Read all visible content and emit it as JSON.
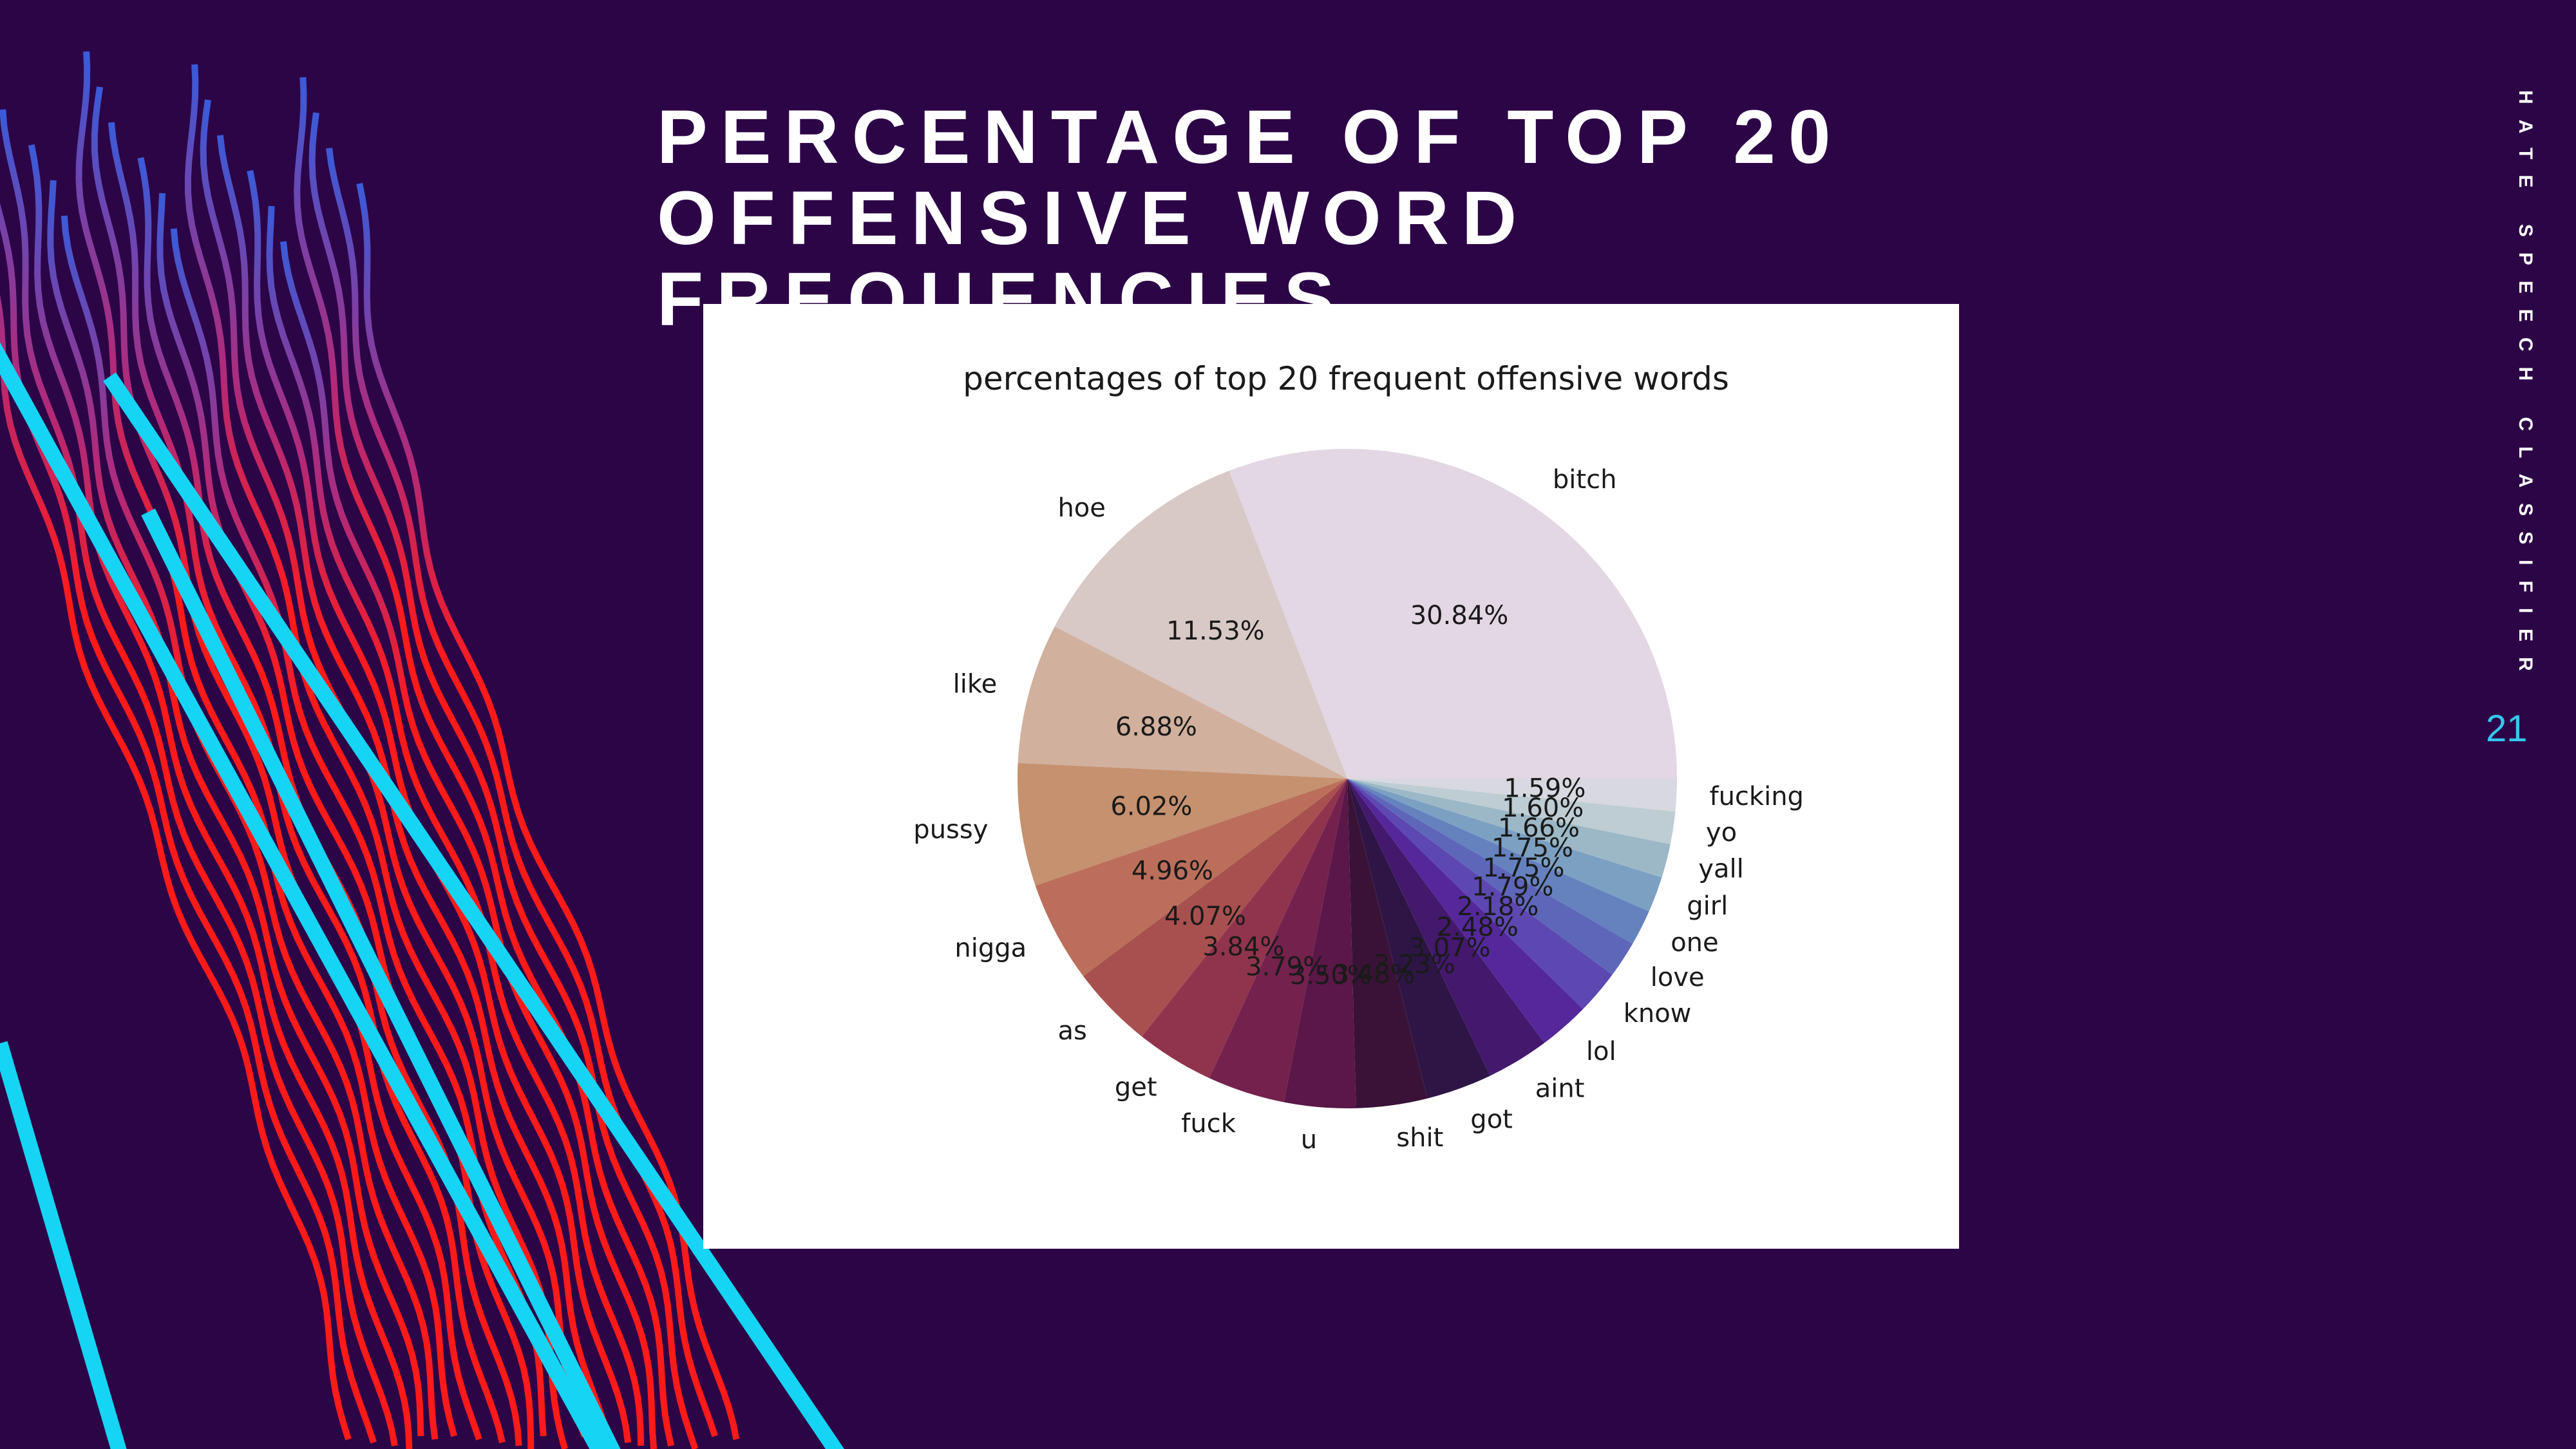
{
  "slide": {
    "title_line1": "PERCENTAGE OF TOP 20",
    "title_line2": "OFFENSIVE WORD FREQUENCIES",
    "side_label": "HATE SPEECH CLASSIFIER",
    "page_number": "21"
  },
  "colors": {
    "background": "#2c0547",
    "title": "#ffffff",
    "page_number": "#35c8ee",
    "deco_cyan": "#16d4f4",
    "deco_red": "#ff1a1a"
  },
  "chart_data": {
    "type": "pie",
    "title": "percentages of top 20 frequent offensive words",
    "start_angle_deg": 0,
    "direction": "counterclockwise",
    "slices": [
      {
        "label": "bitch",
        "value": 30.84,
        "value_label": "30.84%",
        "color": "#e2d7e3"
      },
      {
        "label": "hoe",
        "value": 11.53,
        "value_label": "11.53%",
        "color": "#d8c8c6"
      },
      {
        "label": "like",
        "value": 6.88,
        "value_label": "6.88%",
        "color": "#d1b09e"
      },
      {
        "label": "pussy",
        "value": 6.02,
        "value_label": "6.02%",
        "color": "#c5916f"
      },
      {
        "label": "nigga",
        "value": 4.96,
        "value_label": "4.96%",
        "color": "#bb6f5b"
      },
      {
        "label": "as",
        "value": 4.07,
        "value_label": "4.07%",
        "color": "#a8504f"
      },
      {
        "label": "get",
        "value": 3.84,
        "value_label": "3.84%",
        "color": "#90344e"
      },
      {
        "label": "fuck",
        "value": 3.79,
        "value_label": "3.79%",
        "color": "#74214e"
      },
      {
        "label": "u",
        "value": 3.5,
        "value_label": "3.50%",
        "color": "#5a1747"
      },
      {
        "label": "shit",
        "value": 3.48,
        "value_label": "3.48%",
        "color": "#3a1238"
      },
      {
        "label": "got",
        "value": 3.23,
        "value_label": "3.23%",
        "color": "#2e1546"
      },
      {
        "label": "aint",
        "value": 3.07,
        "value_label": "3.07%",
        "color": "#43186d"
      },
      {
        "label": "lol",
        "value": 2.48,
        "value_label": "2.48%",
        "color": "#54289a"
      },
      {
        "label": "know",
        "value": 2.18,
        "value_label": "2.18%",
        "color": "#5c48b0"
      },
      {
        "label": "love",
        "value": 1.79,
        "value_label": "1.79%",
        "color": "#5e66ba"
      },
      {
        "label": "one",
        "value": 1.75,
        "value_label": "1.75%",
        "color": "#6582bf"
      },
      {
        "label": "girl",
        "value": 1.75,
        "value_label": "1.75%",
        "color": "#7ba0c2"
      },
      {
        "label": "yall",
        "value": 1.66,
        "value_label": "1.66%",
        "color": "#9cb8c7"
      },
      {
        "label": "yo",
        "value": 1.6,
        "value_label": "1.60%",
        "color": "#bdcdd3"
      },
      {
        "label": "fucking",
        "value": 1.59,
        "value_label": "1.59%",
        "color": "#d8d8e0"
      }
    ]
  }
}
